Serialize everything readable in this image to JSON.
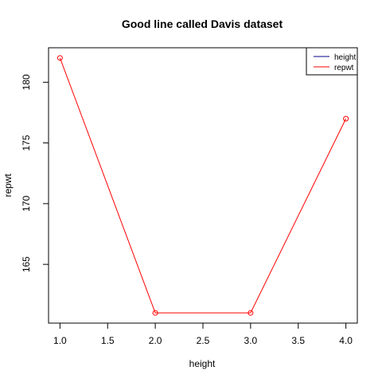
{
  "chart_data": {
    "type": "line",
    "title": "Good line called Davis dataset",
    "xlabel": "height",
    "ylabel": "repwt",
    "x": [
      1,
      2,
      3,
      4
    ],
    "xlim": [
      1,
      4
    ],
    "ylim": [
      161,
      182
    ],
    "x_ticks": [
      1.0,
      1.5,
      2.0,
      2.5,
      3.0,
      3.5,
      4.0
    ],
    "x_tick_labels": [
      "1.0",
      "1.5",
      "2.0",
      "2.5",
      "3.0",
      "3.5",
      "4.0"
    ],
    "y_ticks": [
      165,
      170,
      175,
      180
    ],
    "y_tick_labels": [
      "165",
      "170",
      "175",
      "180"
    ],
    "grid": false,
    "legend_position": "top-right",
    "legend": [
      {
        "name": "height",
        "color": "#00008b"
      },
      {
        "name": "repwt",
        "color": "#ff0000"
      }
    ],
    "series": [
      {
        "name": "repwt",
        "color": "#ff0000",
        "markers": "open-circle",
        "values": [
          182,
          161,
          161,
          177
        ]
      }
    ]
  }
}
